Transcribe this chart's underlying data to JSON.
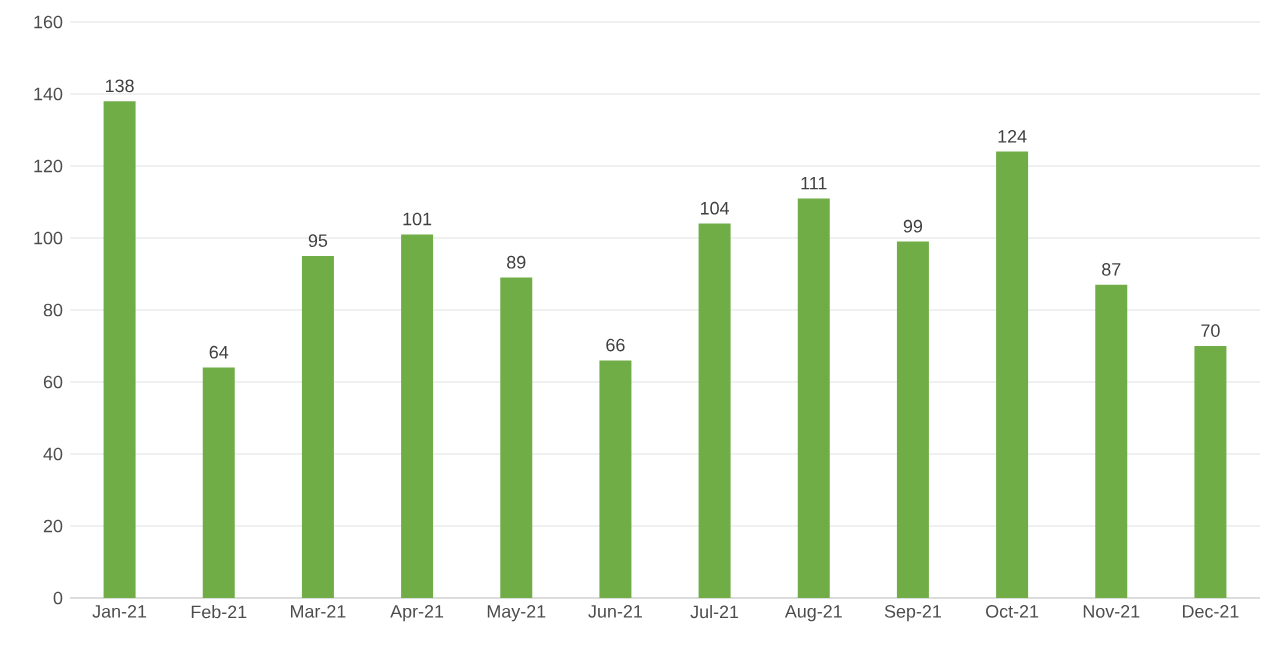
{
  "chart_data": {
    "type": "bar",
    "categories": [
      "Jan-21",
      "Feb-21",
      "Mar-21",
      "Apr-21",
      "May-21",
      "Jun-21",
      "Jul-21",
      "Aug-21",
      "Sep-21",
      "Oct-21",
      "Nov-21",
      "Dec-21"
    ],
    "values": [
      138,
      64,
      95,
      101,
      89,
      66,
      104,
      111,
      99,
      124,
      87,
      70
    ],
    "color": "#70ad47",
    "ylim": [
      0,
      160
    ],
    "yticks": [
      0,
      20,
      40,
      60,
      80,
      100,
      120,
      140,
      160
    ],
    "grid": "y",
    "data_labels": true
  }
}
